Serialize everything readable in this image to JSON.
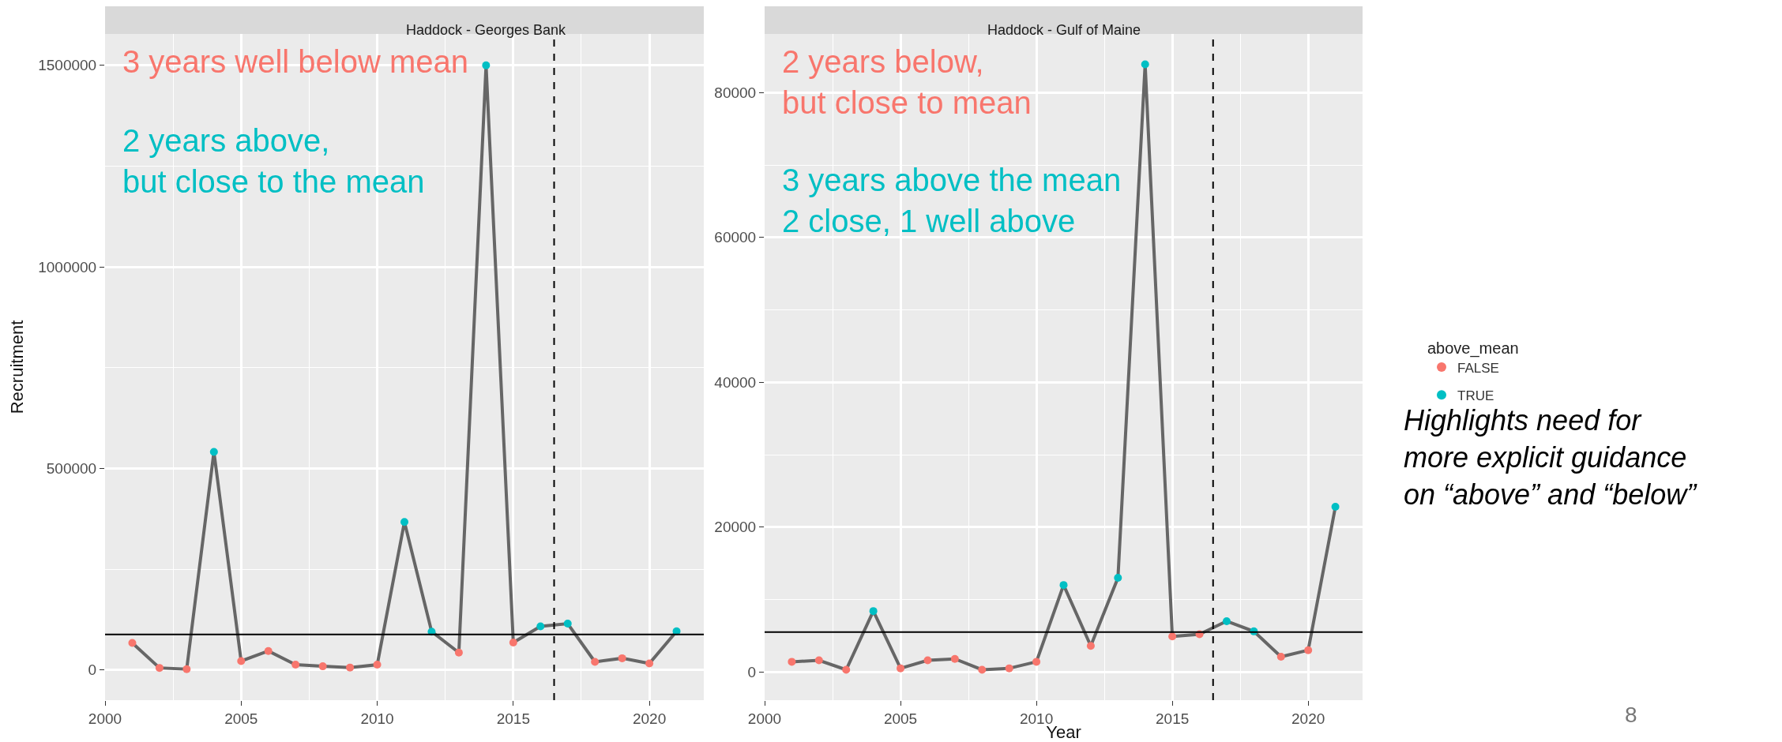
{
  "chart_data": [
    {
      "type": "line",
      "title": "Haddock - Georges Bank",
      "ylabel": "Recruitment",
      "legend_title": "above_mean",
      "legend": "right",
      "x": [
        2001,
        2002,
        2003,
        2004,
        2005,
        2006,
        2007,
        2008,
        2009,
        2010,
        2011,
        2012,
        2013,
        2014,
        2015,
        2016,
        2017,
        2018,
        2019,
        2020,
        2021
      ],
      "series": [
        {
          "color": "#666666",
          "marker": "none",
          "values": [
            67000,
            5000,
            2000,
            541000,
            22000,
            47000,
            13000,
            9000,
            6000,
            13000,
            367000,
            95000,
            43000,
            1500000,
            68000,
            108000,
            115000,
            20000,
            29000,
            16000,
            96000
          ]
        },
        {
          "type": "scatter",
          "name": "FALSE",
          "color": "#f8766d",
          "marker": "circle",
          "x": [
            2001,
            2002,
            2003,
            2005,
            2006,
            2007,
            2008,
            2009,
            2010,
            2013,
            2015,
            2018,
            2019,
            2020
          ],
          "values": [
            67000,
            5000,
            2000,
            22000,
            47000,
            13000,
            9000,
            6000,
            13000,
            43000,
            68000,
            20000,
            29000,
            16000
          ]
        },
        {
          "type": "scatter",
          "name": "TRUE",
          "color": "#00bfc4",
          "marker": "circle",
          "x": [
            2004,
            2011,
            2012,
            2014,
            2016,
            2017,
            2021
          ],
          "values": [
            541000,
            367000,
            95000,
            1500000,
            108000,
            115000,
            96000
          ]
        }
      ],
      "xlim": [
        2000,
        2022
      ],
      "xticks": [
        2000,
        2005,
        2010,
        2015,
        2020
      ],
      "ylim": [
        -75000,
        1578000
      ],
      "yticks": [
        0,
        500000,
        1000000,
        1500000
      ],
      "grid": true,
      "ref_lines": [
        {
          "axis": "y",
          "value": 88000,
          "color": "#000000",
          "line_style": "solid"
        },
        {
          "axis": "x",
          "value": 2016.5,
          "color": "#000000",
          "line_style": "dashed"
        }
      ],
      "annotations": [
        {
          "text": "3 years well below mean"
        },
        {
          "text": "2 years above,\nbut close to the mean"
        }
      ]
    },
    {
      "type": "line",
      "title": "Haddock - Gulf of Maine",
      "xlabel": "Year",
      "x": [
        2001,
        2002,
        2003,
        2004,
        2005,
        2006,
        2007,
        2008,
        2009,
        2010,
        2011,
        2012,
        2013,
        2014,
        2015,
        2016,
        2017,
        2018,
        2019,
        2020,
        2021
      ],
      "series": [
        {
          "color": "#666666",
          "marker": "none",
          "values": [
            1400,
            1600,
            300,
            8400,
            500,
            1600,
            1800,
            300,
            500,
            1400,
            12000,
            3600,
            13000,
            83900,
            4900,
            5200,
            7000,
            5600,
            2100,
            3000,
            22800
          ]
        },
        {
          "type": "scatter",
          "color": "#f8766d",
          "marker": "circle",
          "x": [
            2001,
            2002,
            2003,
            2005,
            2006,
            2007,
            2008,
            2009,
            2010,
            2012,
            2015,
            2016,
            2019,
            2020
          ],
          "values": [
            1400,
            1600,
            300,
            500,
            1600,
            1800,
            300,
            500,
            1400,
            3600,
            4900,
            5200,
            2100,
            3000
          ]
        },
        {
          "type": "scatter",
          "color": "#00bfc4",
          "marker": "circle",
          "x": [
            2004,
            2011,
            2013,
            2014,
            2017,
            2018,
            2021
          ],
          "values": [
            8400,
            12000,
            13000,
            83900,
            7000,
            5600,
            22800
          ]
        }
      ],
      "xlim": [
        2000,
        2022
      ],
      "xticks": [
        2000,
        2005,
        2010,
        2015,
        2020
      ],
      "ylim": [
        -3900,
        88100
      ],
      "yticks": [
        0,
        20000,
        40000,
        60000,
        80000
      ],
      "grid": true,
      "ref_lines": [
        {
          "axis": "y",
          "value": 5500,
          "color": "#000000",
          "line_style": "solid"
        },
        {
          "axis": "x",
          "value": 2016.5,
          "color": "#000000",
          "line_style": "dashed"
        }
      ],
      "annotations": [
        {
          "text": "2 years below,\nbut close to mean"
        },
        {
          "text": "3 years above the mean\n2 close, 1 well above"
        },
        "Highlights need for\nmore explicit guidance\non “above” and “below”",
        "8"
      ]
    }
  ]
}
